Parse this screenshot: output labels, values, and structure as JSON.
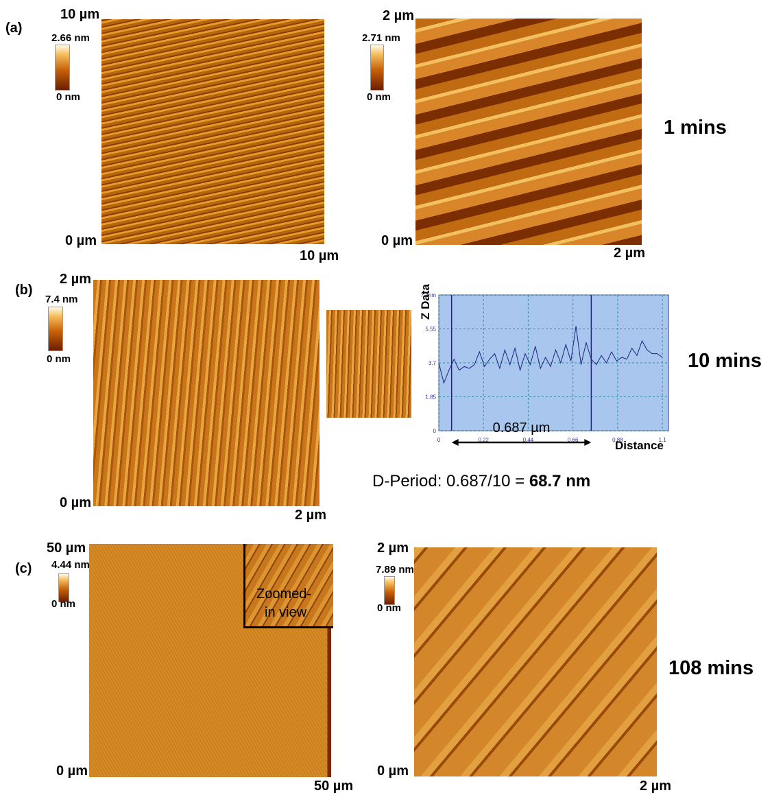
{
  "panels": [
    {
      "label": "(a)",
      "time": "1 mins",
      "images": [
        {
          "top": "10 µm",
          "origin": "0 µm",
          "right": "10 µm",
          "scale_max": "2.66 nm",
          "scale_min": "0 nm"
        },
        {
          "top": "2 µm",
          "origin": "0 µm",
          "right": "2 µm",
          "scale_max": "2.71 nm",
          "scale_min": "0 nm"
        }
      ]
    },
    {
      "label": "(b)",
      "time": "10 mins",
      "images": [
        {
          "top": "2 µm",
          "origin": "0 µm",
          "right": "2 µm",
          "scale_max": "7.4 nm",
          "scale_min": "0 nm"
        }
      ],
      "d_period": {
        "text": "D-Period: 0.687/10 = ",
        "result": "68.7 nm"
      }
    },
    {
      "label": "(c)",
      "time": "108 mins",
      "images": [
        {
          "top": "50 µm",
          "origin": "0 µm",
          "right": "50 µm",
          "scale_max": "4.44 nm",
          "scale_min": "0 nm",
          "zoom_label": [
            "Zoomed-",
            "in view"
          ]
        },
        {
          "top": "2 µm",
          "origin": "0 µm",
          "right": "2 µm",
          "scale_max": "7.89 nm",
          "scale_min": "0 nm"
        }
      ]
    }
  ],
  "chart_data": {
    "type": "line",
    "y_label": "Z Data",
    "x_label": "Distance",
    "annotation": "0.687 µm",
    "x": [
      0,
      0.025,
      0.05,
      0.075,
      0.1,
      0.125,
      0.15,
      0.175,
      0.2,
      0.225,
      0.25,
      0.275,
      0.3,
      0.325,
      0.35,
      0.375,
      0.4,
      0.425,
      0.45,
      0.475,
      0.5,
      0.525,
      0.55,
      0.575,
      0.6,
      0.625,
      0.65,
      0.675,
      0.7,
      0.725,
      0.75,
      0.775,
      0.8,
      0.825,
      0.85,
      0.875,
      0.9,
      0.925,
      0.95,
      0.975,
      1.0,
      1.025,
      1.05,
      1.075,
      1.1
    ],
    "values": [
      3.7,
      2.6,
      3.3,
      3.9,
      3.3,
      3.5,
      3.4,
      3.6,
      4.3,
      3.5,
      3.9,
      4.2,
      3.4,
      4.4,
      3.6,
      4.5,
      3.3,
      4.2,
      3.6,
      4.6,
      3.4,
      4.0,
      3.5,
      4.4,
      3.7,
      4.7,
      3.8,
      5.7,
      3.6,
      4.8,
      3.9,
      3.6,
      4.1,
      3.7,
      4.3,
      3.8,
      4.0,
      3.9,
      4.5,
      4.1,
      4.9,
      4.4,
      4.2,
      4.2,
      4.0
    ],
    "color": "#1a237e",
    "cursors": [
      0.063,
      0.75
    ],
    "xlim": [
      0,
      1.13
    ],
    "ylim": [
      0,
      7.4
    ],
    "xticks": [
      0,
      0.22,
      0.44,
      0.66,
      0.88,
      1.1
    ],
    "yticks": [
      0,
      1.85,
      3.7,
      5.55,
      {
        "value": 7.4,
        "label": "7.4nm"
      }
    ],
    "grid": true
  }
}
